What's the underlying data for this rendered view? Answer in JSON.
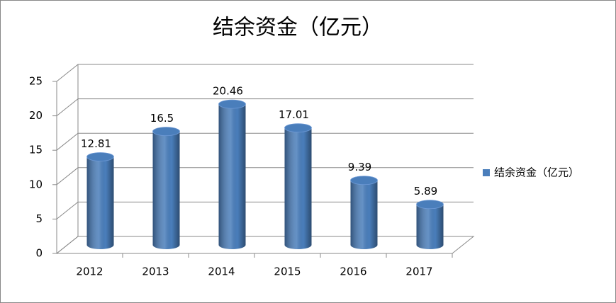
{
  "chart_data": {
    "type": "bar",
    "title": "结余资金（亿元）",
    "categories": [
      "2012",
      "2013",
      "2014",
      "2015",
      "2016",
      "2017"
    ],
    "series": [
      {
        "name": "结余资金（亿元）",
        "color": "#4a7ebb",
        "values": [
          12.81,
          16.5,
          20.46,
          17.01,
          9.39,
          5.89
        ]
      }
    ],
    "ylim": [
      0,
      25
    ],
    "yticks": [
      0,
      5,
      10,
      15,
      20,
      25
    ],
    "grid": true,
    "legend": "right"
  }
}
